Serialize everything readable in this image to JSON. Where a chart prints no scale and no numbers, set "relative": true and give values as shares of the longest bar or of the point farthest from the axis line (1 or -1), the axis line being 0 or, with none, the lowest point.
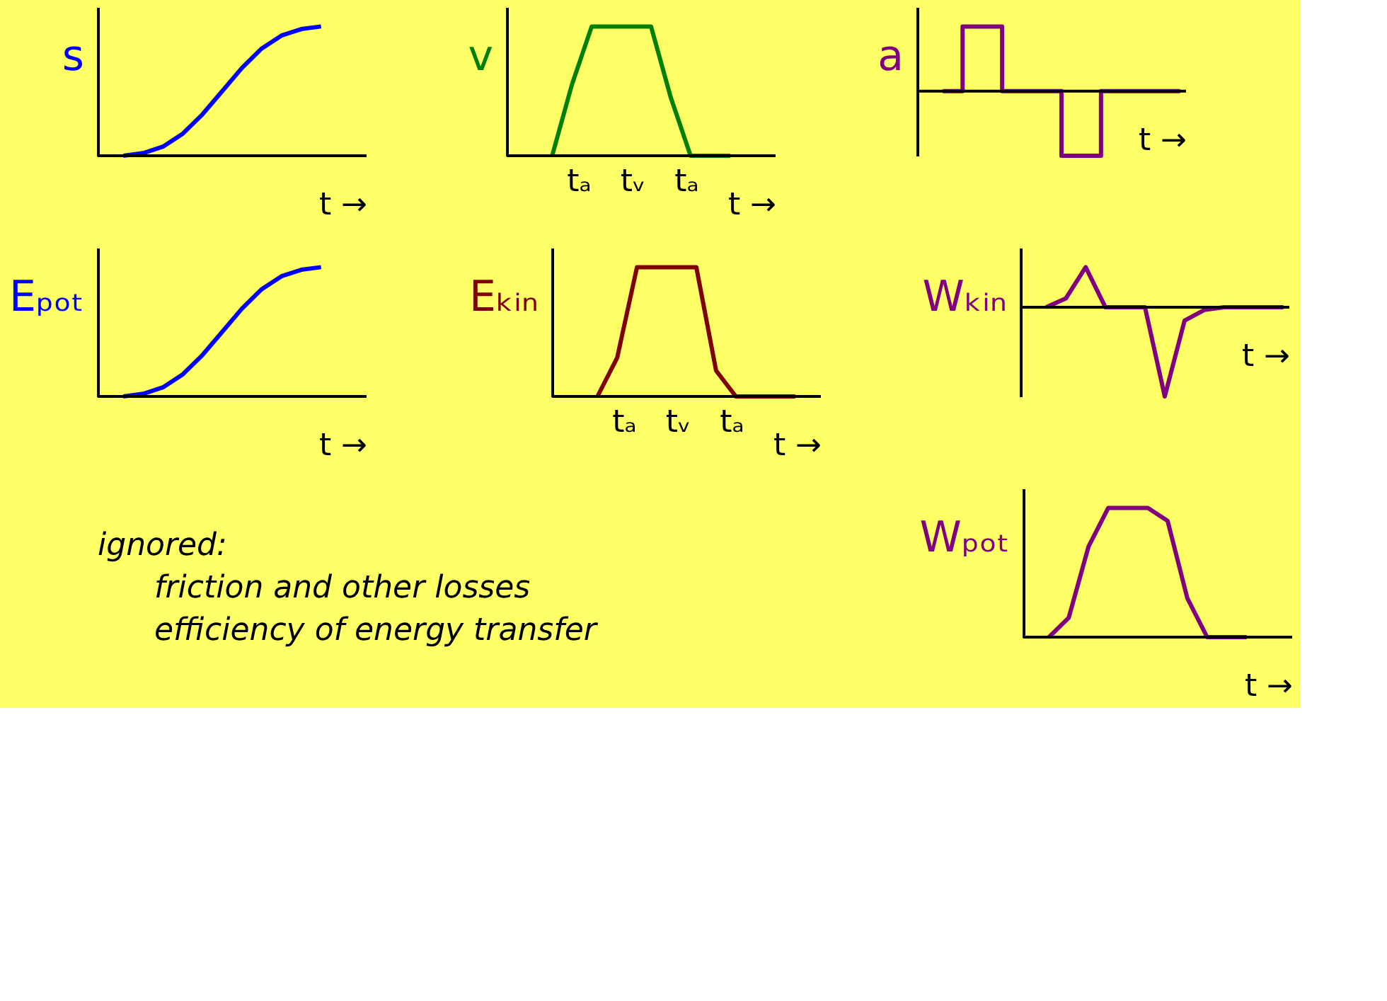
{
  "chart_data": [
    {
      "type": "line",
      "relative": true,
      "ylabel": "s",
      "xlabel": "t →",
      "color": "#0000ff",
      "tick_labels": false,
      "grid": false,
      "legend": false,
      "categories": [
        null,
        null,
        null,
        null,
        null,
        null,
        null,
        null,
        null,
        null,
        null,
        null,
        null,
        null
      ],
      "values": [
        null,
        0,
        0.02,
        0.07,
        0.17,
        0.32,
        0.5,
        0.68,
        0.83,
        0.93,
        0.98,
        1,
        null,
        null
      ]
    },
    {
      "type": "line",
      "relative": true,
      "ylabel": "v",
      "xlabel": "t →",
      "color": "#008000",
      "tick_labels": false,
      "grid": false,
      "legend": false,
      "categories": [
        null,
        null,
        null,
        null,
        null,
        null,
        null,
        null,
        null,
        null,
        null,
        null,
        null,
        null
      ],
      "values": [
        null,
        null,
        0,
        0.55,
        1,
        1,
        1,
        1,
        0.45,
        0,
        0,
        0,
        null,
        null
      ],
      "annotations": [
        "tₐ",
        "tᵥ",
        "tₐ"
      ]
    },
    {
      "type": "step",
      "relative": true,
      "ylabel": "a",
      "xlabel": "t →",
      "color": "#800080",
      "tick_labels": false,
      "grid": false,
      "legend": false,
      "categories": [
        null,
        null,
        null,
        null,
        null,
        null,
        null,
        null,
        null,
        null,
        null,
        null,
        null,
        null
      ],
      "values": [
        null,
        0,
        1,
        1,
        0,
        0,
        0,
        -1,
        -1,
        0,
        0,
        0,
        0,
        0
      ]
    },
    {
      "type": "line",
      "relative": true,
      "ylabel": "Eₚₒₜ",
      "xlabel": "t →",
      "color": "#0000ff",
      "tick_labels": false,
      "grid": false,
      "legend": false,
      "categories": [
        null,
        null,
        null,
        null,
        null,
        null,
        null,
        null,
        null,
        null,
        null,
        null,
        null,
        null
      ],
      "values": [
        null,
        0,
        0.02,
        0.07,
        0.17,
        0.32,
        0.5,
        0.68,
        0.83,
        0.93,
        0.98,
        1,
        null,
        null
      ]
    },
    {
      "type": "line",
      "relative": true,
      "ylabel": "Eₖᵢₙ",
      "xlabel": "t →",
      "color": "#800000",
      "tick_labels": false,
      "grid": false,
      "legend": false,
      "categories": [
        null,
        null,
        null,
        null,
        null,
        null,
        null,
        null,
        null,
        null,
        null,
        null,
        null,
        null
      ],
      "values": [
        null,
        null,
        0,
        0.3,
        1,
        1,
        1,
        1,
        0.2,
        0,
        0,
        0,
        0,
        null
      ],
      "annotations": [
        "tₐ",
        "tᵥ",
        "tₐ"
      ]
    },
    {
      "type": "line",
      "relative": true,
      "ylabel": "Wₖᵢₙ",
      "xlabel": "t →",
      "color": "#800080",
      "tick_labels": false,
      "grid": false,
      "legend": false,
      "categories": [
        null,
        null,
        null,
        null,
        null,
        null,
        null,
        null,
        null,
        null,
        null,
        null,
        null,
        null
      ],
      "values": [
        null,
        0,
        0.1,
        0.45,
        0,
        0,
        0,
        -1,
        -0.15,
        -0.03,
        0,
        0,
        0,
        0
      ]
    },
    {
      "type": "other",
      "annotations": [
        "ignored:",
        "friction and other losses",
        "efficiency of energy transfer"
      ]
    },
    {
      "type": "line",
      "relative": true,
      "ylabel": "Wₚₒₜ",
      "xlabel": "t →",
      "color": "#800080",
      "tick_labels": false,
      "grid": false,
      "legend": false,
      "categories": [
        null,
        null,
        null,
        null,
        null,
        null,
        null,
        null,
        null,
        null,
        null,
        null,
        null,
        null
      ],
      "values": [
        null,
        0,
        0.15,
        0.7,
        1,
        1,
        1,
        0.9,
        0.3,
        0,
        0,
        0,
        null,
        null
      ]
    }
  ]
}
